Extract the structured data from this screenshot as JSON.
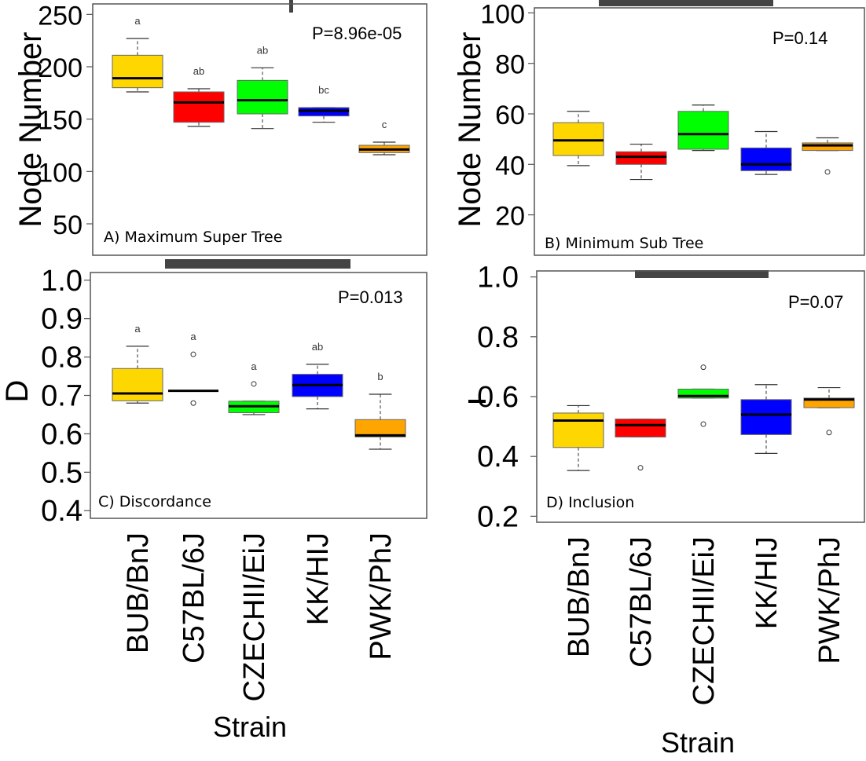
{
  "colors": [
    "#FFD700",
    "#FF0000",
    "#00FF00",
    "#0000FF",
    "#FFA500"
  ],
  "x_label": "Strain",
  "chart_data": [
    {
      "type": "box",
      "panel": "A) Maximum Super Tree",
      "ylabel": "Node Number",
      "pvalue": "P=8.96e-05",
      "ylim": [
        20,
        260
      ],
      "yticks": [
        "250",
        "200",
        "150",
        "100",
        "50"
      ],
      "categories": [
        "BUB/BnJ",
        "C57BL/6J",
        "CZECHII/EiJ",
        "KK/HIJ",
        "PWK/PhJ"
      ],
      "boxes": [
        {
          "min": 176,
          "q1": 180,
          "median": 189,
          "q3": 211,
          "max": 227,
          "outliers": []
        },
        {
          "min": 143,
          "q1": 147,
          "median": 166,
          "q3": 176,
          "max": 179,
          "outliers": []
        },
        {
          "min": 141,
          "q1": 155,
          "median": 168,
          "q3": 187,
          "max": 199,
          "outliers": []
        },
        {
          "min": 147,
          "q1": 153,
          "median": 158,
          "q3": 161,
          "max": 161,
          "outliers": []
        },
        {
          "min": 116,
          "q1": 118,
          "median": 121,
          "q3": 125,
          "max": 128,
          "outliers": []
        }
      ],
      "letters": [
        "a",
        "ab",
        "ab",
        "bc",
        "c"
      ]
    },
    {
      "type": "box",
      "panel": "B) Minimum Sub Tree",
      "ylabel": "Node Number",
      "pvalue": "P=0.14",
      "ylim": [
        4,
        102
      ],
      "yticks": [
        "100",
        "80",
        "60",
        "40",
        "20"
      ],
      "categories": [
        "BUB/BnJ",
        "C57BL/6J",
        "CZECHII/EiJ",
        "KK/HIJ",
        "PWK/PhJ"
      ],
      "boxes": [
        {
          "min": 39.5,
          "q1": 43.5,
          "median": 49.5,
          "q3": 56.5,
          "max": 61,
          "outliers": []
        },
        {
          "min": 34,
          "q1": 40,
          "median": 43,
          "q3": 45,
          "max": 48,
          "outliers": []
        },
        {
          "min": 45.5,
          "q1": 46,
          "median": 52,
          "q3": 61,
          "max": 63.5,
          "outliers": []
        },
        {
          "min": 36,
          "q1": 37.5,
          "median": 40,
          "q3": 46.5,
          "max": 53,
          "outliers": []
        },
        {
          "min": 45.5,
          "q1": 45.5,
          "median": 47.5,
          "q3": 48.5,
          "max": 50.5,
          "outliers": [
            37
          ]
        }
      ],
      "letters": []
    },
    {
      "type": "box",
      "panel": "C) Discordance",
      "ylabel": "D",
      "pvalue": "P=0.013",
      "ylim": [
        0.38,
        1.02
      ],
      "yticks": [
        "1.0",
        "0.9",
        "0.8",
        "0.7",
        "0.6",
        "0.5",
        "0.4"
      ],
      "categories": [
        "BUB/BnJ",
        "C57BL/6J",
        "CZECHII/EiJ",
        "KK/HIJ",
        "PWK/PhJ"
      ],
      "boxes": [
        {
          "min": 0.68,
          "q1": 0.686,
          "median": 0.705,
          "q3": 0.77,
          "max": 0.828,
          "outliers": []
        },
        {
          "min": 0.712,
          "q1": 0.712,
          "median": 0.712,
          "q3": 0.712,
          "max": 0.712,
          "outliers": [
            0.807,
            0.68
          ]
        },
        {
          "min": 0.65,
          "q1": 0.655,
          "median": 0.672,
          "q3": 0.685,
          "max": 0.685,
          "outliers": [
            0.73
          ]
        },
        {
          "min": 0.665,
          "q1": 0.697,
          "median": 0.727,
          "q3": 0.755,
          "max": 0.781,
          "outliers": []
        },
        {
          "min": 0.56,
          "q1": 0.592,
          "median": 0.596,
          "q3": 0.637,
          "max": 0.703,
          "outliers": []
        }
      ],
      "letters": [
        "a",
        "a",
        "a",
        "ab",
        "b"
      ]
    },
    {
      "type": "box",
      "panel": "D) Inclusion",
      "ylabel": "",
      "pvalue": "P=0.07",
      "ylim": [
        0.18,
        1.02
      ],
      "yticks": [
        "1.0",
        "0.8",
        "0.6",
        "0.4",
        "0.2"
      ],
      "categories": [
        "BUB/BnJ",
        "C57BL/6J",
        "CZECHII/EiJ",
        "KK/HIJ",
        "PWK/PhJ"
      ],
      "boxes": [
        {
          "min": 0.353,
          "q1": 0.43,
          "median": 0.52,
          "q3": 0.545,
          "max": 0.57,
          "outliers": []
        },
        {
          "min": 0.465,
          "q1": 0.465,
          "median": 0.505,
          "q3": 0.525,
          "max": 0.525,
          "outliers": [
            0.362
          ]
        },
        {
          "min": 0.595,
          "q1": 0.595,
          "median": 0.602,
          "q3": 0.625,
          "max": 0.625,
          "outliers": [
            0.698,
            0.508
          ]
        },
        {
          "min": 0.41,
          "q1": 0.473,
          "median": 0.54,
          "q3": 0.59,
          "max": 0.64,
          "outliers": []
        },
        {
          "min": 0.563,
          "q1": 0.563,
          "median": 0.59,
          "q3": 0.595,
          "max": 0.63,
          "outliers": [
            0.48
          ]
        }
      ],
      "letters": []
    }
  ]
}
